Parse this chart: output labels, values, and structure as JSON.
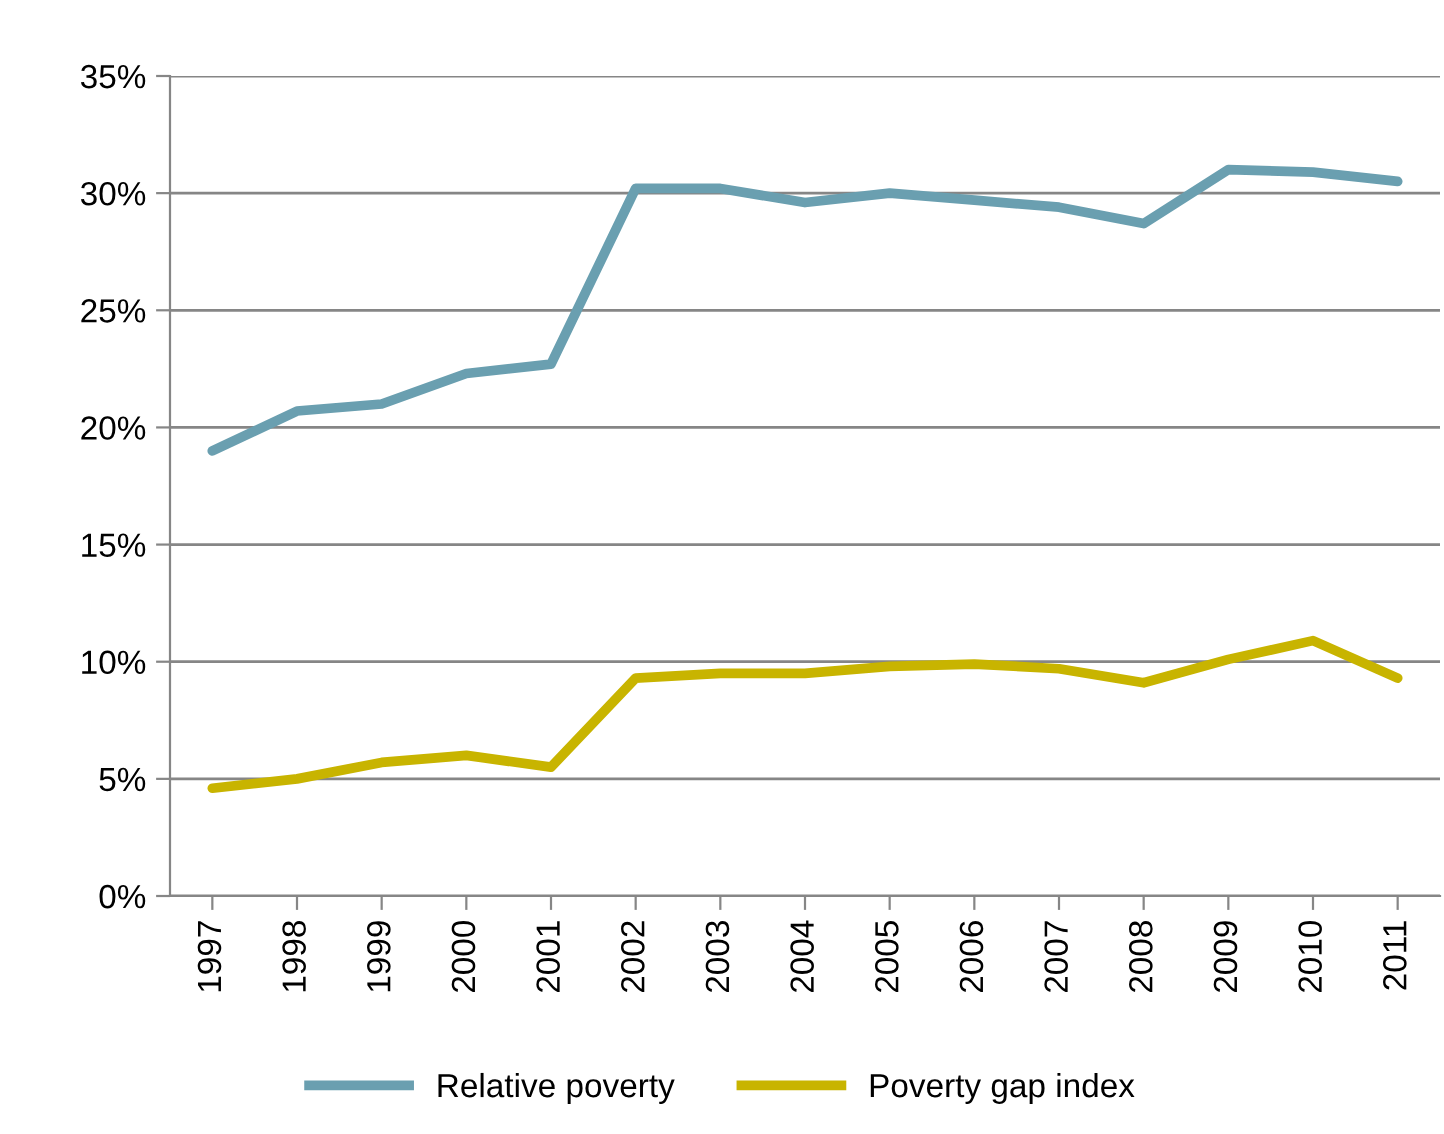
{
  "chart_data": {
    "type": "line",
    "categories": [
      "1997",
      "1998",
      "1999",
      "2000",
      "2001",
      "2002",
      "2003",
      "2004",
      "2005",
      "2006",
      "2007",
      "2008",
      "2009",
      "2010",
      "2011"
    ],
    "series": [
      {
        "name": "Relative poverty",
        "color": "#6a9fb0",
        "values": [
          19.0,
          20.7,
          21.0,
          22.3,
          22.7,
          30.2,
          30.2,
          29.6,
          30.0,
          29.7,
          29.4,
          28.7,
          31.0,
          30.9,
          30.5
        ]
      },
      {
        "name": "Poverty gap index",
        "color": "#c8b400",
        "values": [
          4.6,
          5.0,
          5.7,
          6.0,
          5.5,
          9.3,
          9.5,
          9.5,
          9.8,
          9.9,
          9.7,
          9.1,
          10.1,
          10.9,
          9.3
        ]
      }
    ],
    "ylim": [
      0,
      35
    ],
    "yticks": [
      {
        "value": 0,
        "label": "0%"
      },
      {
        "value": 5,
        "label": "5%"
      },
      {
        "value": 10,
        "label": "10%"
      },
      {
        "value": 15,
        "label": "15%"
      },
      {
        "value": 20,
        "label": "20%"
      },
      {
        "value": 25,
        "label": "25%"
      },
      {
        "value": 30,
        "label": "30%"
      },
      {
        "value": 35,
        "label": "35%"
      }
    ],
    "grid": "y",
    "legend": "bottom",
    "marker": "none",
    "line_style": "solid"
  }
}
